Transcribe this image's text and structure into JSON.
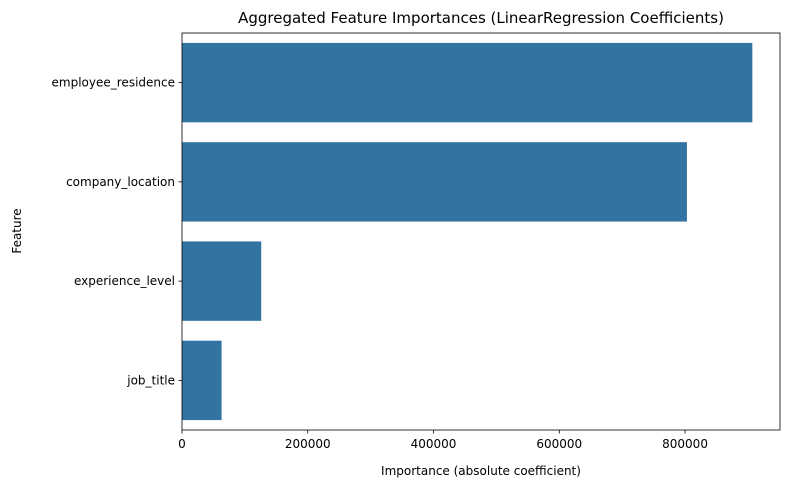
{
  "chart_data": {
    "type": "bar",
    "orientation": "horizontal",
    "title": "Aggregated Feature Importances (LinearRegression Coefficients)",
    "xlabel": "Importance (absolute coefficient)",
    "ylabel": "Feature",
    "categories": [
      "employee_residence",
      "company_location",
      "experience_level",
      "job_title"
    ],
    "values": [
      907000,
      803000,
      126000,
      63000
    ],
    "xlim": [
      0,
      951000
    ],
    "xticks": [
      0,
      200000,
      400000,
      600000,
      800000
    ],
    "xtick_labels": [
      "0",
      "200000",
      "400000",
      "600000",
      "800000"
    ],
    "bar_color": "#3274a1",
    "grid": false,
    "legend": "none"
  }
}
